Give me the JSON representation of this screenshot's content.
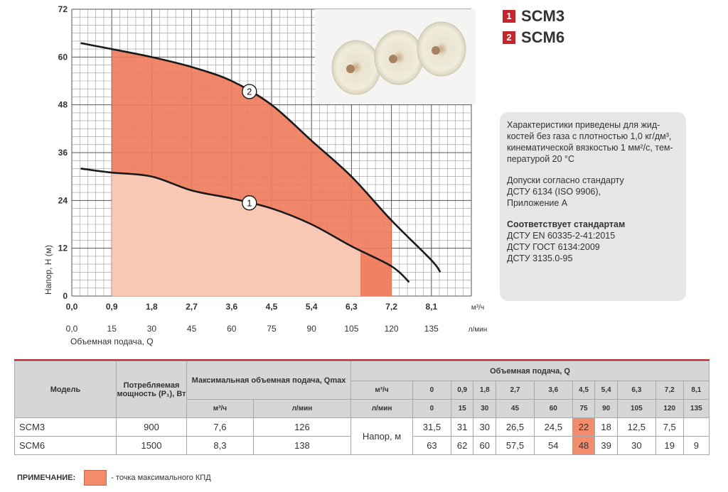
{
  "chart_data": {
    "type": "line",
    "ylabel": "Напор, H (м)",
    "xlabel": "Объемная подача, Q",
    "x_unit_top": "м³/ч",
    "x_unit_bottom": "л/мин",
    "ylim": [
      0,
      72
    ],
    "xlim": [
      0,
      9.0
    ],
    "y_ticks": [
      "0",
      "12",
      "24",
      "36",
      "48",
      "60",
      "72"
    ],
    "x_ticks_m3h": [
      "0,0",
      "0,9",
      "1,8",
      "2,7",
      "3,6",
      "4,5",
      "5,4",
      "6,3",
      "7,2",
      "8,1"
    ],
    "x_ticks_lmin": [
      "0,0",
      "15",
      "30",
      "45",
      "60",
      "75",
      "90",
      "105",
      "120",
      "135"
    ],
    "grid": true,
    "series": [
      {
        "name": "SCM3",
        "label": "1",
        "x": [
          0.2,
          0.9,
          1.8,
          2.7,
          3.6,
          4.5,
          5.4,
          6.3,
          7.2,
          7.6
        ],
        "y": [
          32,
          31,
          30,
          26.5,
          24.5,
          22,
          18,
          12.5,
          7.5,
          3.5
        ],
        "color": "#c4262e"
      },
      {
        "name": "SCM6",
        "label": "2",
        "x": [
          0.2,
          0.9,
          1.8,
          2.7,
          3.6,
          4.5,
          5.4,
          6.3,
          7.2,
          8.1,
          8.3
        ],
        "y": [
          63.5,
          62,
          60,
          57.5,
          54,
          48,
          39,
          30,
          19,
          9,
          6
        ],
        "color": "#c4262e"
      }
    ],
    "operating_range": {
      "x_from": 0.9,
      "scm3_x_to": 7.2,
      "scm6_x_to": 7.2,
      "scm3_max_eff_from": 6.5
    }
  },
  "legend": [
    {
      "num": "1",
      "name": "SCM3"
    },
    {
      "num": "2",
      "name": "SCM6"
    }
  ],
  "info": {
    "p1": "Характеристики приведены для жид-",
    "p1b": "костей без газа с плотностью 1,0 кг/дм³,",
    "p1c": "кинематической вязкостью 1 мм²/с, тем-",
    "p1d": "пературой 20 °C",
    "p2": "Допуски согласно стандарту",
    "p2b": "ДСТУ 6134 (ISO 9906),",
    "p2c": "Приложение А",
    "p3_title": "Соответствует стандартам",
    "p3a": "ДСТУ EN 60335-2-41:2015",
    "p3b": "ДСТУ ГОСТ 6134:2009",
    "p3c": "ДСТУ 3135.0-95"
  },
  "table": {
    "h_model": "Модель",
    "h_power": "Потребляемая мощность (P₁), Вт",
    "h_qmax": "Максимальная объемная подача, Qmax",
    "h_flow": "Объемная подача, Q",
    "u_m3h": "м³/ч",
    "u_lmin": "л/мин",
    "q_m3h": [
      "0",
      "0,9",
      "1,8",
      "2,7",
      "3,6",
      "4,5",
      "5,4",
      "6,3",
      "7,2",
      "8,1"
    ],
    "q_lmin": [
      "0",
      "15",
      "30",
      "45",
      "60",
      "75",
      "90",
      "105",
      "120",
      "135"
    ],
    "head_label": "Напор, м",
    "rows": [
      {
        "model": "SCM3",
        "power": "900",
        "qmax_m3h": "7,6",
        "qmax_lmin": "126",
        "head": [
          "31,5",
          "31",
          "30",
          "26,5",
          "24,5",
          "22",
          "18",
          "12,5",
          "7,5",
          ""
        ]
      },
      {
        "model": "SCM6",
        "power": "1500",
        "qmax_m3h": "8,3",
        "qmax_lmin": "138",
        "head": [
          "63",
          "62",
          "60",
          "57,5",
          "54",
          "48",
          "39",
          "30",
          "19",
          "9"
        ]
      }
    ]
  },
  "note": {
    "label": "ПРИМЕЧАНИЕ:",
    "text": "- точка максимального КПД"
  }
}
